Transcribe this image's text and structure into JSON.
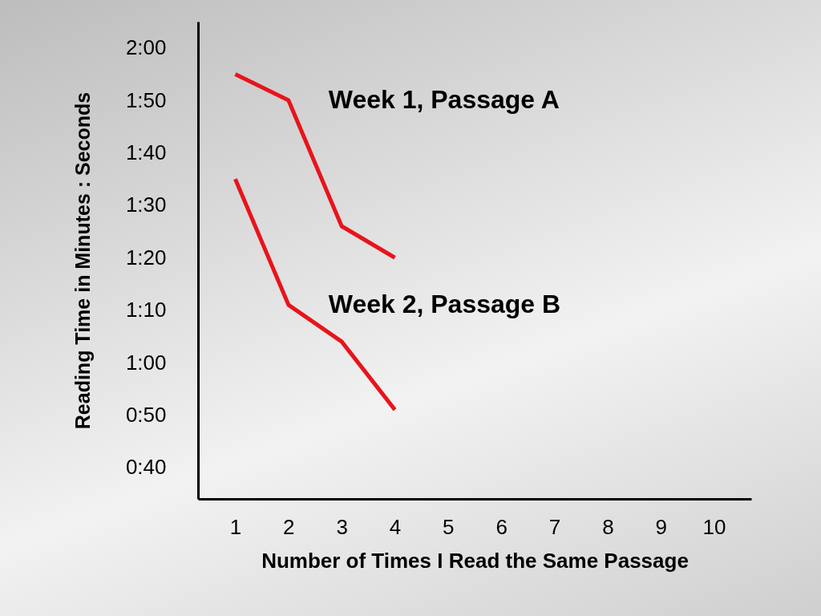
{
  "chart_data": {
    "type": "line",
    "xlabel": "Number of Times I Read the Same Passage",
    "ylabel": "Reading Time in Minutes : Seconds",
    "x": [
      1,
      2,
      3,
      4
    ],
    "xlim": [
      0.3,
      10.7
    ],
    "xticks": [
      1,
      2,
      3,
      4,
      5,
      6,
      7,
      8,
      9,
      10
    ],
    "ylim": [
      34,
      125
    ],
    "yticks": [
      {
        "value": 40,
        "label": "0:40"
      },
      {
        "value": 50,
        "label": "0:50"
      },
      {
        "value": 60,
        "label": "1:00"
      },
      {
        "value": 70,
        "label": "1:10"
      },
      {
        "value": 80,
        "label": "1:20"
      },
      {
        "value": 90,
        "label": "1:30"
      },
      {
        "value": 100,
        "label": "1:40"
      },
      {
        "value": 110,
        "label": "1:50"
      },
      {
        "value": 120,
        "label": "2:00"
      }
    ],
    "series": [
      {
        "name": "Week 1, Passage A",
        "color": "#e8141c",
        "values": [
          115,
          110,
          86,
          80
        ]
      },
      {
        "name": "Week 2, Passage B",
        "color": "#e8141c",
        "values": [
          95,
          71,
          64,
          51
        ]
      }
    ],
    "grid": false,
    "legend": false,
    "marker": "none",
    "line_style": "solid"
  }
}
